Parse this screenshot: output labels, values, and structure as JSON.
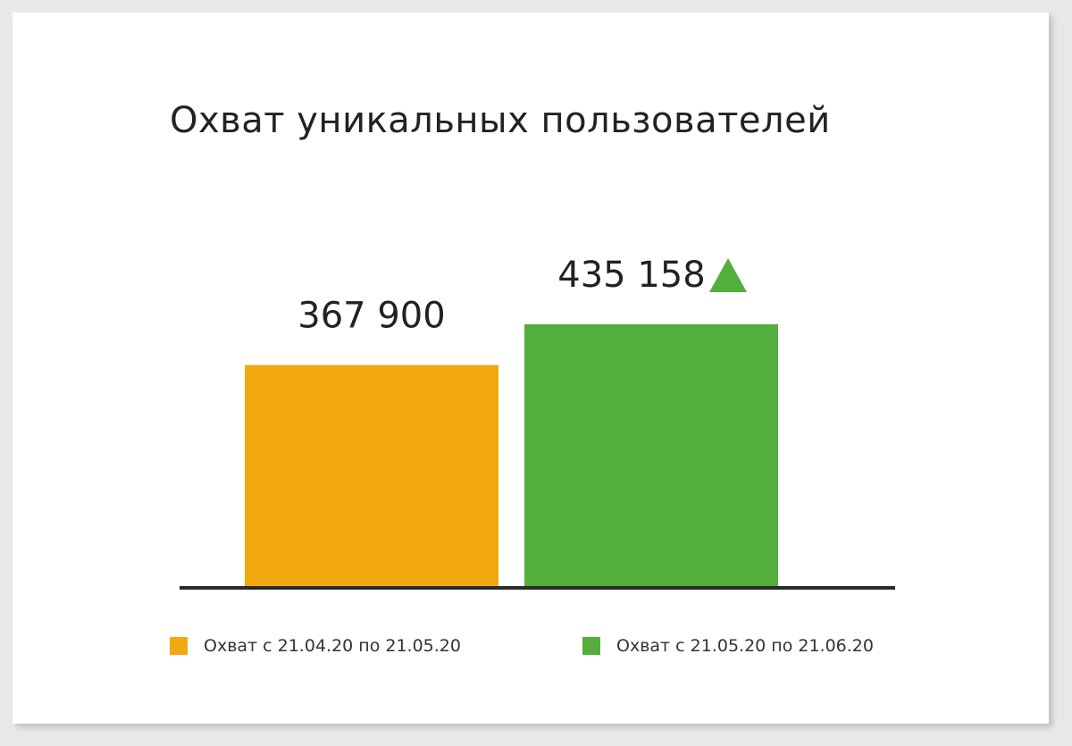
{
  "chart_data": {
    "type": "bar",
    "title": "Охват уникальных пользователей",
    "categories": [
      "Охват с 21.04.20 по 21.05.20",
      "Охват с 21.05.20 по 21.06.20"
    ],
    "values": [
      367900,
      435158
    ],
    "value_labels": [
      "367 900",
      "435 158"
    ],
    "colors": [
      "#f2a90f",
      "#53ae3c"
    ],
    "trend_indicator": "up-triangle",
    "trend_color": "#53ae3c",
    "xlabel": "",
    "ylabel": "",
    "grid": false,
    "legend_position": "bottom"
  }
}
